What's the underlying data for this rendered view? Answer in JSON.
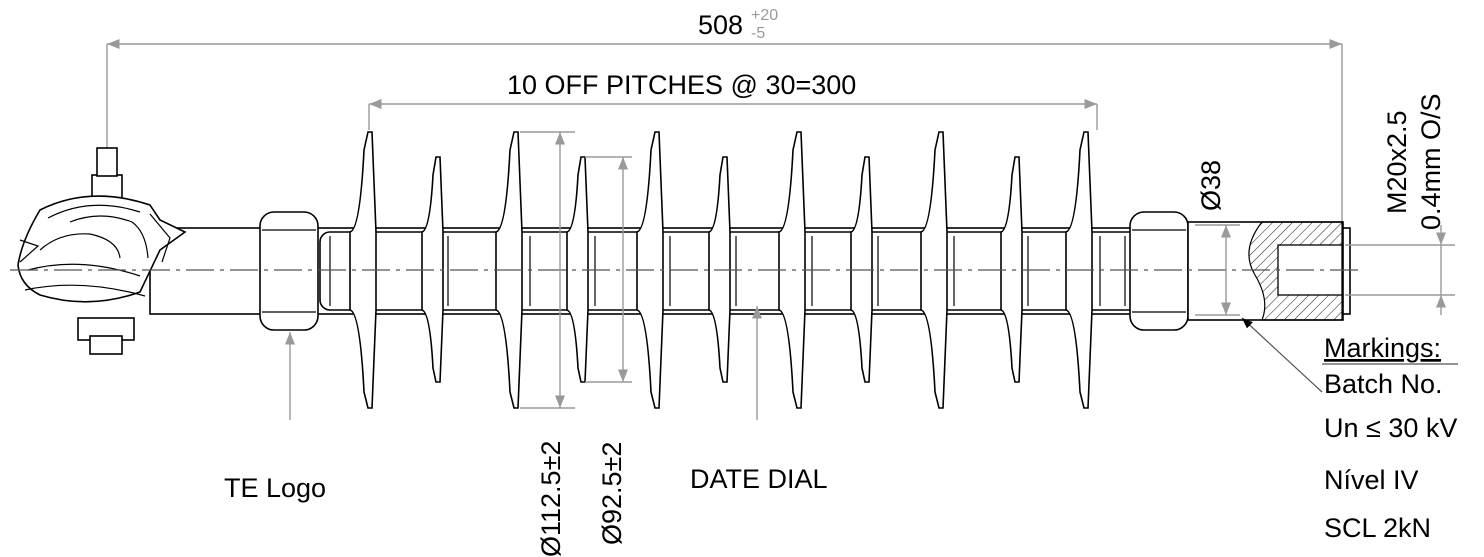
{
  "overall_length": {
    "value": "508",
    "upper_tol": "+20",
    "lower_tol": "-5"
  },
  "pitch_note": "10 OFF PITCHES @ 30=300",
  "thread_label_line1": "M20x2.5",
  "thread_label_line2": "0.4mm O/S",
  "rod_diameter": "Ø38",
  "large_shed_diameter": "Ø112.5±2",
  "small_shed_diameter": "Ø92.5±2",
  "callouts": {
    "logo": "TE Logo",
    "date_dial": "DATE DIAL"
  },
  "markings": {
    "title": "Markings:",
    "lines": [
      "Batch No.",
      "Un ≤ 30 kV",
      "Nível IV",
      "SCL 2kN"
    ]
  }
}
